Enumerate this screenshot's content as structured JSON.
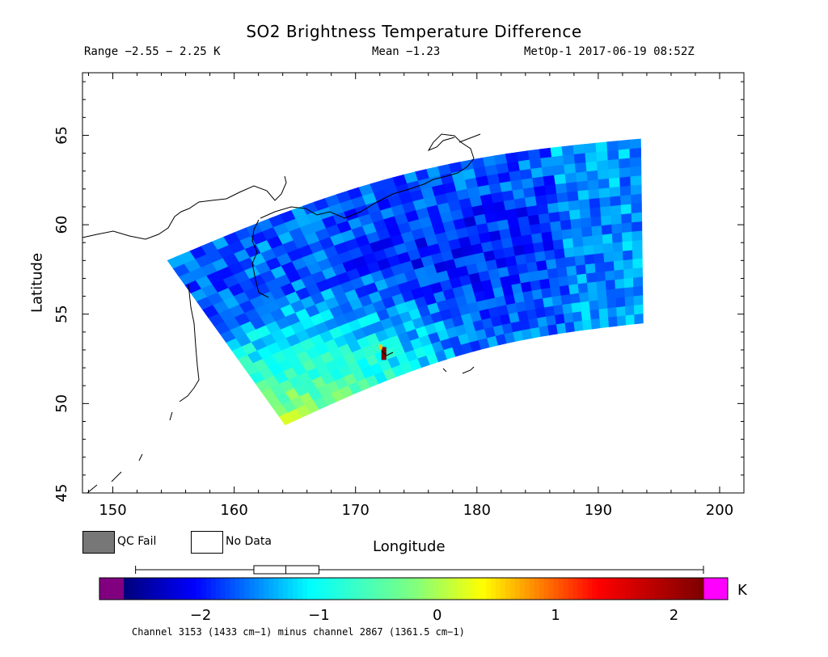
{
  "chart_data": {
    "type": "heatmap",
    "title": "SO2 Brightness Temperature Difference",
    "header": {
      "range": "Range −2.55 − 2.25 K",
      "mean": "Mean −1.23",
      "satellite_time": "MetOp-1 2017-06-19 08:52Z"
    },
    "xlabel": "Longitude",
    "ylabel": "Latitude",
    "xlim": [
      147.5,
      202
    ],
    "ylim": [
      45,
      68.5
    ],
    "xticks": [
      150,
      160,
      170,
      180,
      190,
      200
    ],
    "yticks": [
      45,
      50,
      55,
      60,
      65
    ],
    "legend": [
      {
        "name": "QC Fail",
        "color": "#777777"
      },
      {
        "name": "No Data",
        "color": "#ffffff"
      }
    ],
    "colorbar": {
      "unit": "K",
      "range": [
        -2.65,
        2.25
      ],
      "ticks": [
        -2,
        -1,
        0,
        1,
        2
      ],
      "tick_labels": [
        "−2",
        "−1",
        "0",
        "1",
        "2"
      ],
      "below_color": "#800080",
      "above_color": "#ff00ff",
      "boxplot": {
        "whisker_low": -2.55,
        "q1": -1.55,
        "median": -1.28,
        "q3": -1.0,
        "whisker_high": 2.25
      }
    },
    "swath": {
      "corners": {
        "top_left": [
          154.5,
          58.0
        ],
        "top_right": [
          193.5,
          64.8
        ],
        "bottom_right": [
          193.7,
          54.5
        ],
        "bottom_left": [
          164.2,
          48.8
        ]
      },
      "rows": 20,
      "cols": 42,
      "mean": -1.23,
      "so2_hotspot": {
        "lon": 172.4,
        "lat": 52.8,
        "value": 2.25
      }
    },
    "footnote": "Channel 3153 (1433 cm−1) minus channel 2867 (1361.5 cm−1)"
  }
}
